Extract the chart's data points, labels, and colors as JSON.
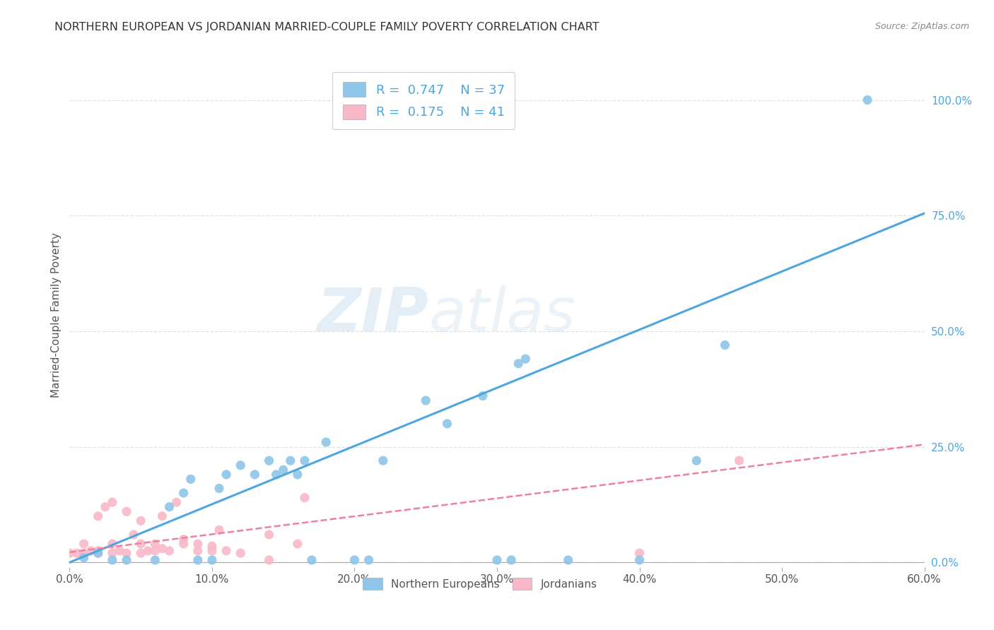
{
  "title": "NORTHERN EUROPEAN VS JORDANIAN MARRIED-COUPLE FAMILY POVERTY CORRELATION CHART",
  "source": "Source: ZipAtlas.com",
  "ylabel": "Married-Couple Family Poverty",
  "watermark_zip": "ZIP",
  "watermark_atlas": "atlas",
  "xlim": [
    0.0,
    0.6
  ],
  "ylim": [
    -0.01,
    1.08
  ],
  "xticks": [
    0.0,
    0.1,
    0.2,
    0.3,
    0.4,
    0.5,
    0.6
  ],
  "xtick_labels": [
    "0.0%",
    "10.0%",
    "20.0%",
    "30.0%",
    "40.0%",
    "50.0%",
    "60.0%"
  ],
  "ytick_labels_right": [
    "0.0%",
    "25.0%",
    "50.0%",
    "75.0%",
    "100.0%"
  ],
  "ytick_vals_right": [
    0.0,
    0.25,
    0.5,
    0.75,
    1.0
  ],
  "blue_color": "#8dc6e8",
  "pink_color": "#f9b8c8",
  "blue_line_color": "#4da6e0",
  "pink_line_color": "#f080a0",
  "legend_R1": "0.747",
  "legend_N1": "37",
  "legend_R2": "0.175",
  "legend_N2": "41",
  "legend_label1": "Northern Europeans",
  "legend_label2": "Jordanians",
  "blue_scatter_x": [
    0.01,
    0.02,
    0.03,
    0.04,
    0.06,
    0.07,
    0.08,
    0.085,
    0.09,
    0.1,
    0.105,
    0.11,
    0.12,
    0.13,
    0.14,
    0.145,
    0.15,
    0.155,
    0.16,
    0.165,
    0.17,
    0.18,
    0.2,
    0.21,
    0.22,
    0.25,
    0.265,
    0.29,
    0.3,
    0.31,
    0.315,
    0.32,
    0.35,
    0.4,
    0.44,
    0.46,
    0.56
  ],
  "blue_scatter_y": [
    0.01,
    0.02,
    0.005,
    0.005,
    0.005,
    0.12,
    0.15,
    0.18,
    0.005,
    0.005,
    0.16,
    0.19,
    0.21,
    0.19,
    0.22,
    0.19,
    0.2,
    0.22,
    0.19,
    0.22,
    0.005,
    0.26,
    0.005,
    0.005,
    0.22,
    0.35,
    0.3,
    0.36,
    0.005,
    0.005,
    0.43,
    0.44,
    0.005,
    0.005,
    0.22,
    0.47,
    1.0
  ],
  "pink_scatter_x": [
    0.0,
    0.005,
    0.01,
    0.01,
    0.015,
    0.02,
    0.02,
    0.02,
    0.025,
    0.03,
    0.03,
    0.03,
    0.035,
    0.04,
    0.04,
    0.045,
    0.05,
    0.05,
    0.05,
    0.055,
    0.06,
    0.06,
    0.065,
    0.065,
    0.07,
    0.075,
    0.08,
    0.08,
    0.09,
    0.09,
    0.1,
    0.1,
    0.105,
    0.11,
    0.12,
    0.14,
    0.14,
    0.16,
    0.165,
    0.4,
    0.47
  ],
  "pink_scatter_y": [
    0.02,
    0.02,
    0.02,
    0.04,
    0.025,
    0.02,
    0.025,
    0.1,
    0.12,
    0.02,
    0.04,
    0.13,
    0.025,
    0.02,
    0.11,
    0.06,
    0.02,
    0.04,
    0.09,
    0.025,
    0.025,
    0.04,
    0.03,
    0.1,
    0.025,
    0.13,
    0.04,
    0.05,
    0.025,
    0.04,
    0.025,
    0.035,
    0.07,
    0.025,
    0.02,
    0.005,
    0.06,
    0.04,
    0.14,
    0.02,
    0.22
  ],
  "blue_trend_x0": 0.0,
  "blue_trend_x1": 0.6,
  "blue_trend_y0": 0.0,
  "blue_trend_y1": 0.755,
  "pink_trend_x0": 0.0,
  "pink_trend_x1": 0.6,
  "pink_trend_y0": 0.022,
  "pink_trend_y1": 0.255,
  "background_color": "#ffffff",
  "grid_color": "#e0e0e0"
}
